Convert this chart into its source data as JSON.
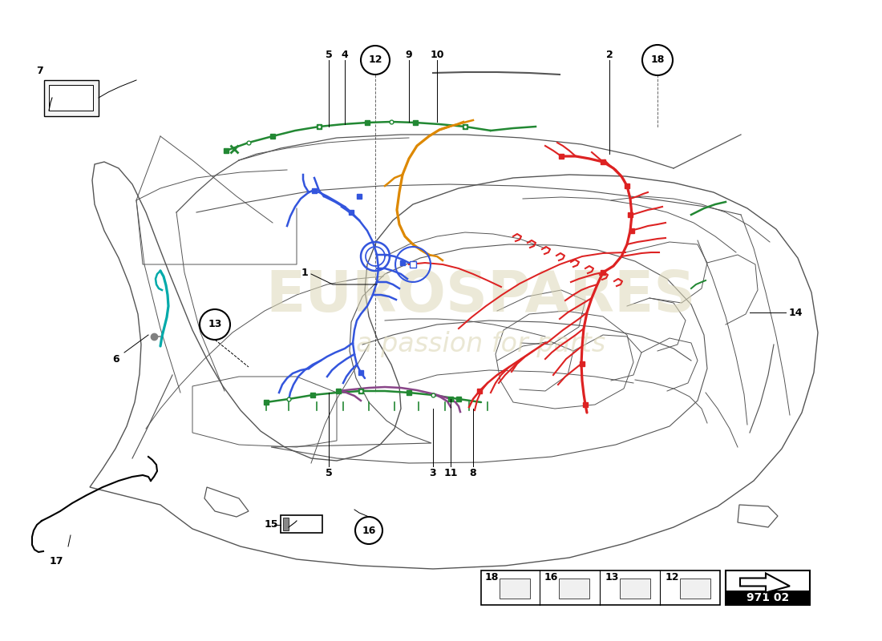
{
  "bg_color": "#ffffff",
  "car_color": "#555555",
  "wiring": {
    "blue": "#3355dd",
    "red": "#dd2222",
    "green": "#228833",
    "orange": "#dd8800",
    "cyan": "#00aaaa",
    "purple": "#884488",
    "pink": "#cc3388",
    "yellow_green": "#88cc00",
    "dark_red": "#cc2200"
  },
  "watermark1": "EUROSPARES",
  "watermark2": "a passion for parts",
  "page_code": "971 02",
  "wm_color": "#ddd8b8"
}
